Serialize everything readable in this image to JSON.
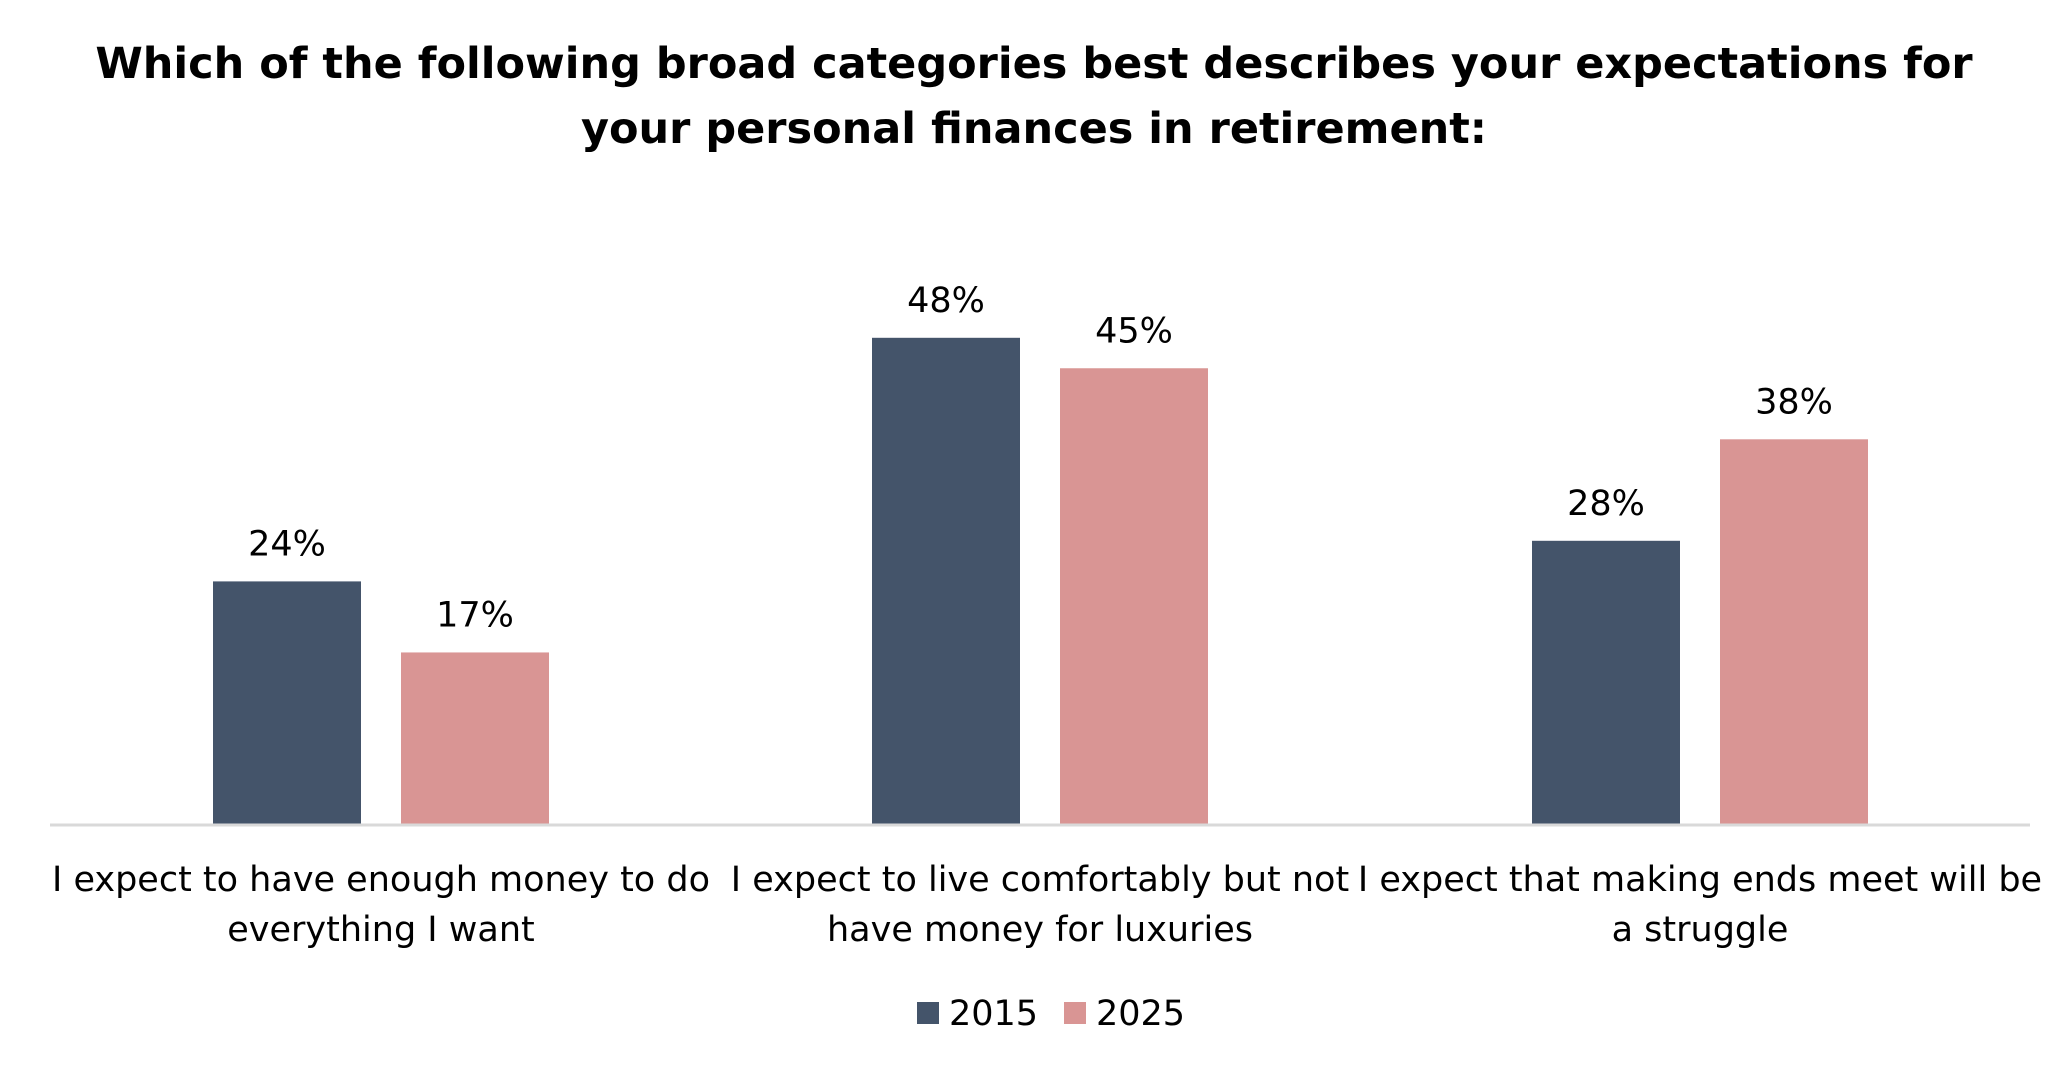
{
  "chart_data": {
    "type": "bar",
    "title": "Which of the following broad categories best describes your expectations for your personal finances in retirement:",
    "title_lines": [
      "Which of the following broad categories best describes your expectations for",
      "your personal finances in retirement:"
    ],
    "categories": [
      "I expect to have enough money to do everything I want",
      "I expect to live comfortably but not have money for luxuries",
      "I expect that making ends meet will be a struggle"
    ],
    "category_label_lines": [
      [
        "I expect to have enough money to do",
        "everything I want"
      ],
      [
        "I expect to live comfortably but not",
        "have money for luxuries"
      ],
      [
        "I expect that making ends meet will be",
        "a struggle"
      ]
    ],
    "series": [
      {
        "name": "2015",
        "color": "#44546a",
        "values": [
          24,
          48,
          28
        ],
        "labels": [
          "24%",
          "48%",
          "28%"
        ]
      },
      {
        "name": "2025",
        "color": "#d99594",
        "values": [
          17,
          45,
          38
        ],
        "labels": [
          "17%",
          "45%",
          "38%"
        ]
      }
    ],
    "unit": "%",
    "ylim": [
      0,
      60
    ],
    "grid": false,
    "y_axis_visible": false,
    "legend_position": "bottom",
    "axis_line_color": "#d9d9d9"
  }
}
